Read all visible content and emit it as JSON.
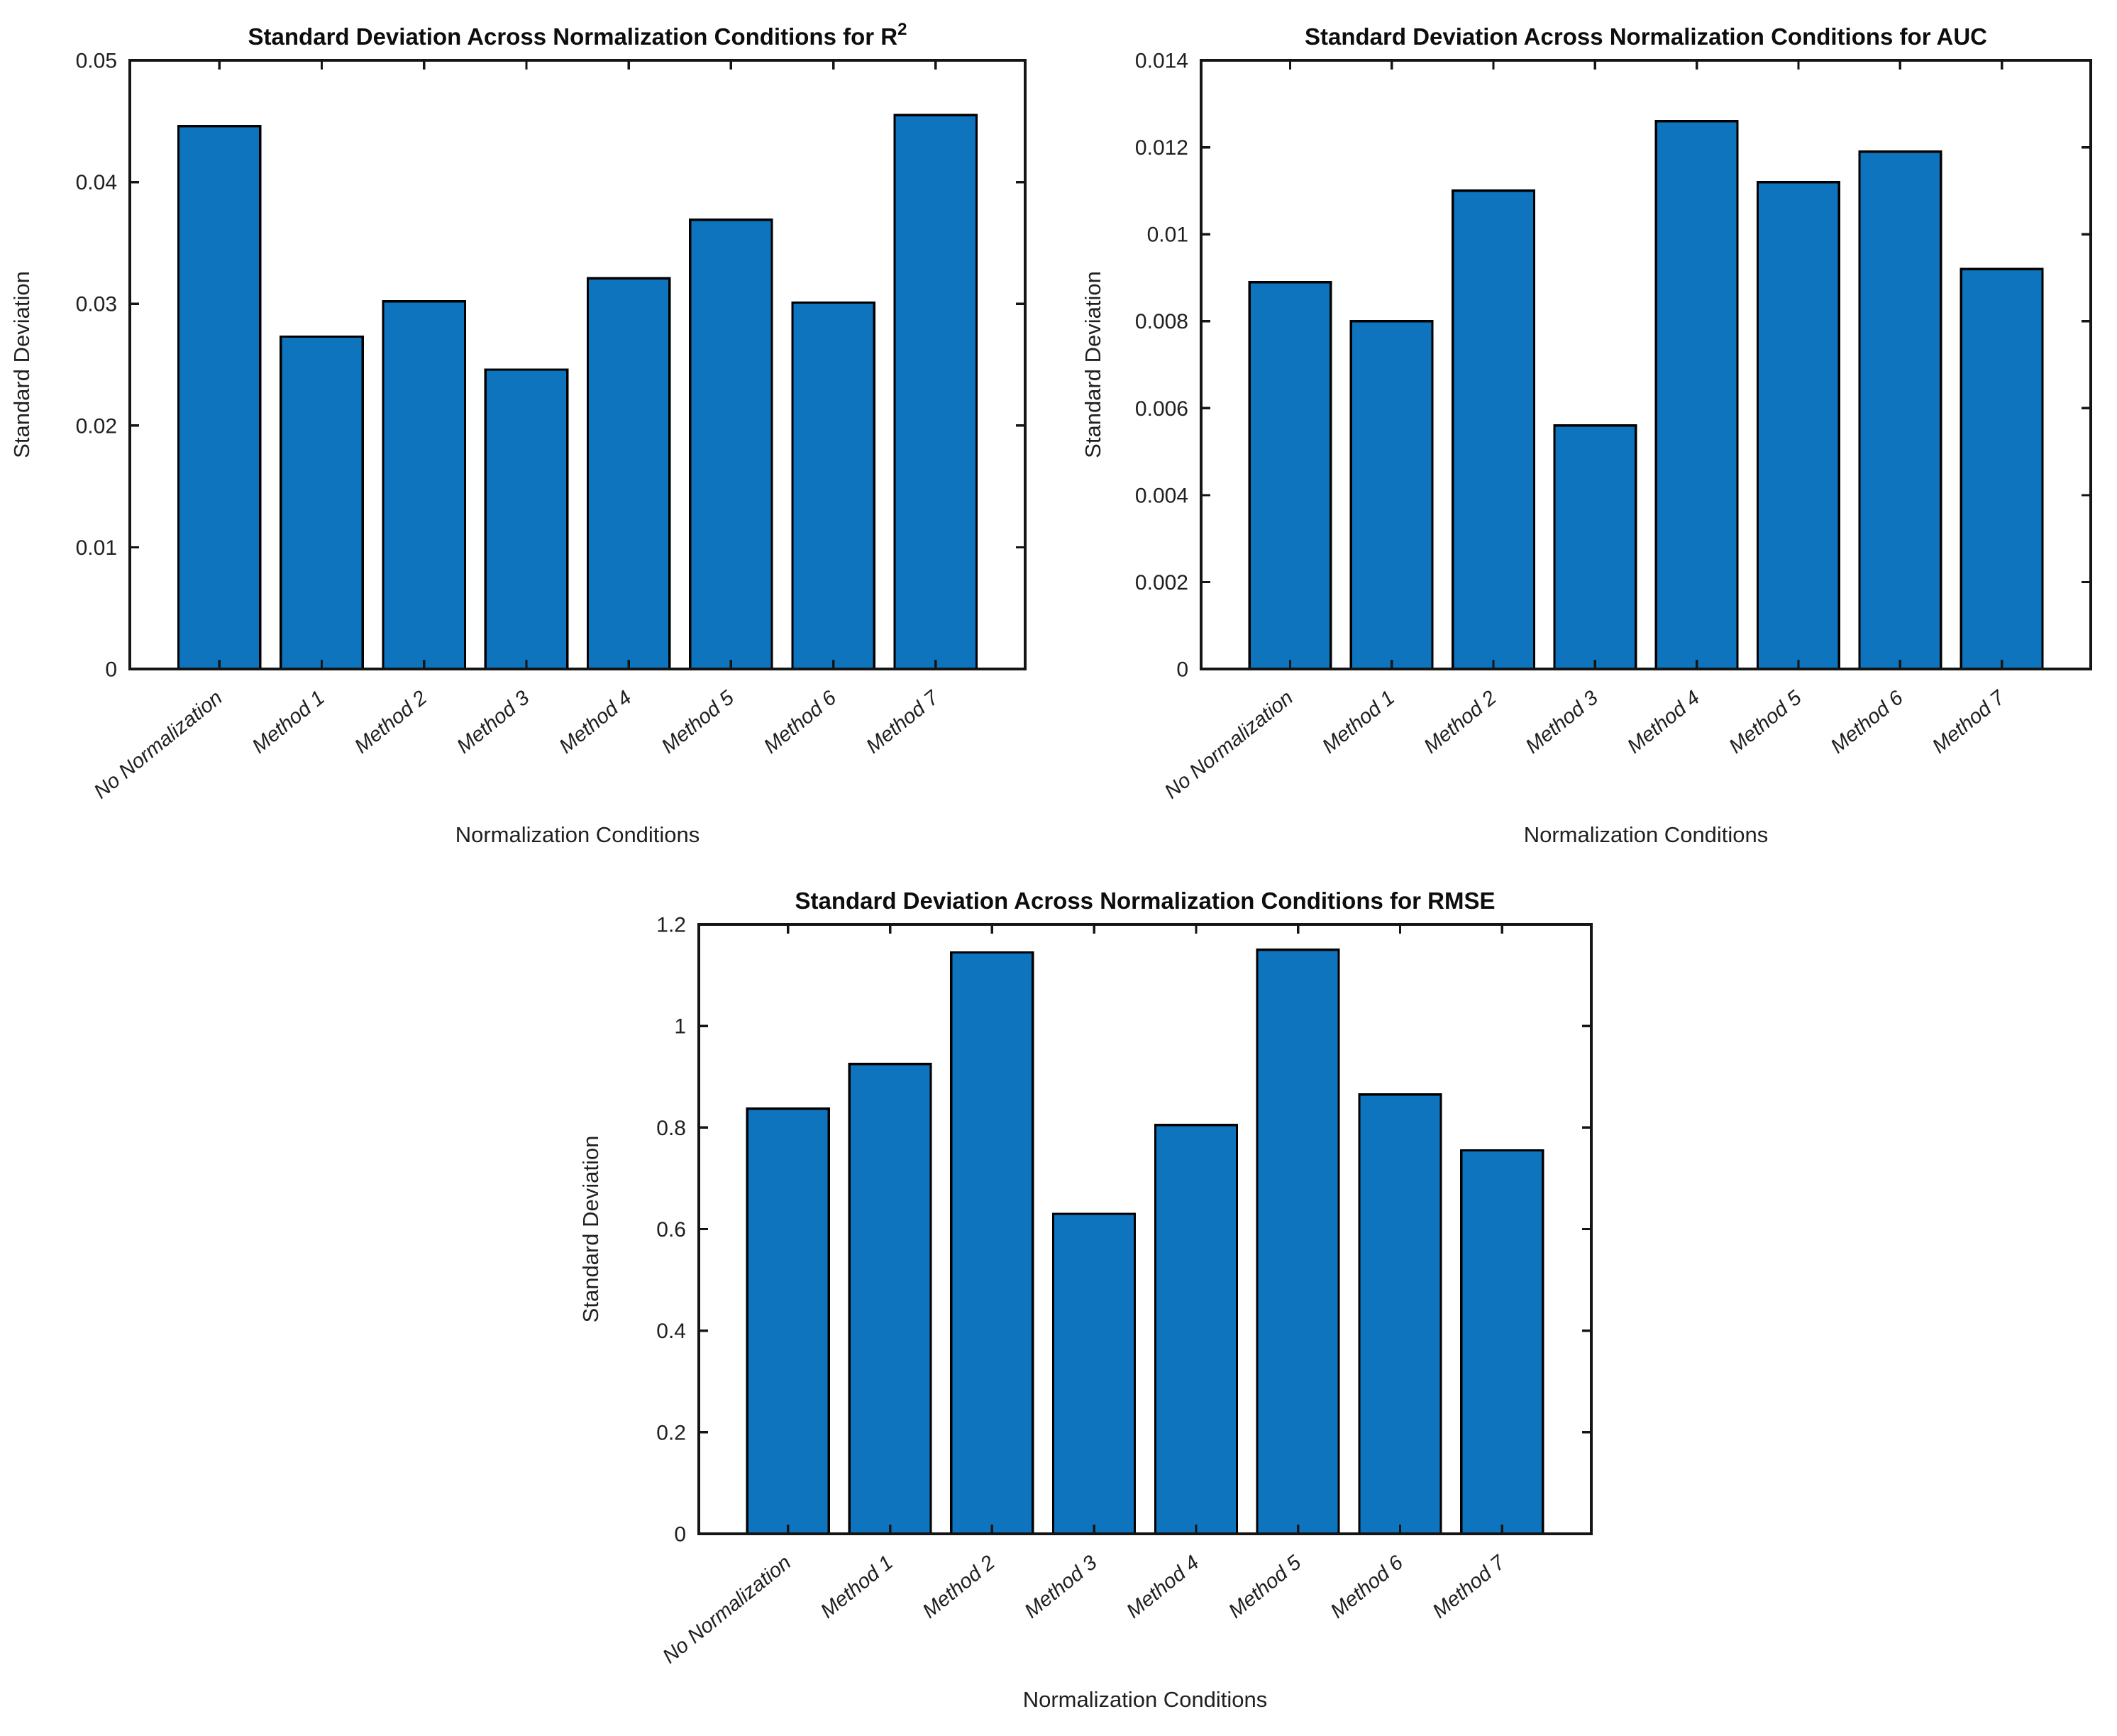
{
  "figure": {
    "background": "#ffffff",
    "axis_color": "#151515",
    "text_color": "#202020",
    "title_color": "#0d0d0d",
    "bar_fill": "#0d74bd",
    "bar_edge": "#000000"
  },
  "chart_data": [
    {
      "id": "r2",
      "type": "bar",
      "title": "Standard Deviation Across Normalization Conditions for R",
      "title_superscript": "2",
      "xlabel": "Normalization Conditions",
      "ylabel": "Standard Deviation",
      "categories": [
        "No Normalization",
        "Method 1",
        "Method 2",
        "Method 3",
        "Method 4",
        "Method 5",
        "Method 6",
        "Method 7"
      ],
      "values": [
        0.0446,
        0.0273,
        0.0302,
        0.0246,
        0.0321,
        0.0369,
        0.0301,
        0.0455
      ],
      "ylim": [
        0,
        0.05
      ],
      "y_tick_values": [
        0,
        0.01,
        0.02,
        0.03,
        0.04,
        0.05
      ],
      "y_tick_labels": [
        "0",
        "0.01",
        "0.02",
        "0.03",
        "0.04",
        "0.05"
      ],
      "grid": false,
      "legend": null
    },
    {
      "id": "auc",
      "type": "bar",
      "title": "Standard Deviation Across Normalization Conditions for AUC",
      "title_superscript": "",
      "xlabel": "Normalization Conditions",
      "ylabel": "Standard Deviation",
      "categories": [
        "No Normalization",
        "Method 1",
        "Method 2",
        "Method 3",
        "Method 4",
        "Method 5",
        "Method 6",
        "Method 7"
      ],
      "values": [
        0.0089,
        0.008,
        0.011,
        0.0056,
        0.0126,
        0.0112,
        0.0119,
        0.0092
      ],
      "ylim": [
        0,
        0.014
      ],
      "y_tick_values": [
        0,
        0.002,
        0.004,
        0.006,
        0.008,
        0.01,
        0.012,
        0.014
      ],
      "y_tick_labels": [
        "0",
        "0.002",
        "0.004",
        "0.006",
        "0.008",
        "0.01",
        "0.012",
        "0.014"
      ],
      "grid": false,
      "legend": null
    },
    {
      "id": "rmse",
      "type": "bar",
      "title": "Standard Deviation Across Normalization Conditions for RMSE",
      "title_superscript": "",
      "xlabel": "Normalization Conditions",
      "ylabel": "Standard Deviation",
      "categories": [
        "No Normalization",
        "Method 1",
        "Method 2",
        "Method 3",
        "Method 4",
        "Method 5",
        "Method 6",
        "Method 7"
      ],
      "values": [
        0.837,
        0.925,
        1.145,
        0.63,
        0.805,
        1.15,
        0.865,
        0.755
      ],
      "ylim": [
        0,
        1.2
      ],
      "y_tick_values": [
        0,
        0.2,
        0.4,
        0.6,
        0.8,
        1,
        1.2
      ],
      "y_tick_labels": [
        "0",
        "0.2",
        "0.4",
        "0.6",
        "0.8",
        "1",
        "1.2"
      ],
      "grid": false,
      "legend": null
    }
  ]
}
